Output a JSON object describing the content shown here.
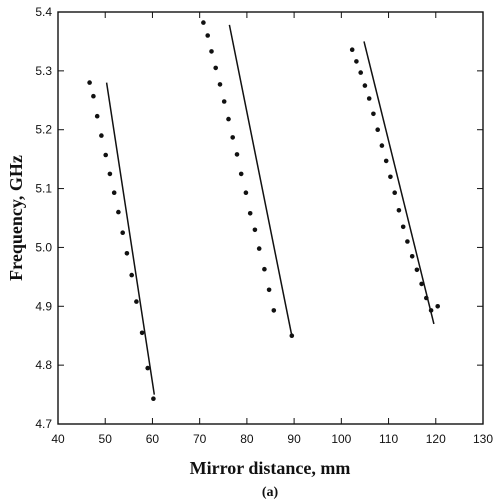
{
  "chart_data": {
    "type": "scatter",
    "title": "",
    "xlabel": "Mirror distance,  mm",
    "ylabel": "Frequency, GHz",
    "caption": "(a)",
    "xlim": [
      40,
      130
    ],
    "ylim": [
      4.7,
      5.4
    ],
    "x_ticks": [
      40,
      50,
      60,
      70,
      80,
      90,
      100,
      110,
      120,
      130
    ],
    "y_ticks": [
      4.7,
      4.8,
      4.9,
      5.0,
      5.1,
      5.2,
      5.3,
      5.4
    ],
    "x_tick_labels": [
      "40",
      "50",
      "60",
      "70",
      "80",
      "90",
      "100",
      "110",
      "120",
      "130"
    ],
    "y_tick_labels": [
      "4.7",
      "4.8",
      "4.9",
      "5.0",
      "5.1",
      "5.2",
      "5.3",
      "5.4"
    ],
    "grid": false,
    "series": [
      {
        "style": "dots",
        "points": [
          [
            46.7,
            5.28
          ],
          [
            47.5,
            5.257
          ],
          [
            48.3,
            5.223
          ],
          [
            49.2,
            5.19
          ],
          [
            50.1,
            5.157
          ],
          [
            51.0,
            5.125
          ],
          [
            51.9,
            5.093
          ],
          [
            52.8,
            5.06
          ],
          [
            53.7,
            5.025
          ],
          [
            54.6,
            4.99
          ],
          [
            55.6,
            4.953
          ],
          [
            56.6,
            4.908
          ],
          [
            57.8,
            4.855
          ],
          [
            59.0,
            4.795
          ],
          [
            60.2,
            4.743
          ]
        ]
      },
      {
        "style": "line",
        "points": [
          [
            50.3,
            5.28
          ],
          [
            60.4,
            4.75
          ]
        ]
      },
      {
        "style": "dots",
        "points": [
          [
            70.8,
            5.382
          ],
          [
            71.7,
            5.36
          ],
          [
            72.5,
            5.333
          ],
          [
            73.4,
            5.305
          ],
          [
            74.3,
            5.277
          ],
          [
            75.2,
            5.248
          ],
          [
            76.1,
            5.218
          ],
          [
            77.0,
            5.187
          ],
          [
            77.9,
            5.158
          ],
          [
            78.8,
            5.125
          ],
          [
            79.8,
            5.093
          ],
          [
            80.7,
            5.058
          ],
          [
            81.7,
            5.03
          ],
          [
            82.6,
            4.998
          ],
          [
            83.7,
            4.963
          ],
          [
            84.7,
            4.928
          ],
          [
            85.7,
            4.893
          ],
          [
            89.5,
            4.85
          ]
        ]
      },
      {
        "style": "line",
        "points": [
          [
            76.3,
            5.378
          ],
          [
            89.5,
            4.85
          ]
        ]
      },
      {
        "style": "dots",
        "points": [
          [
            102.3,
            5.336
          ],
          [
            103.2,
            5.316
          ],
          [
            104.1,
            5.297
          ],
          [
            105.0,
            5.275
          ],
          [
            105.9,
            5.253
          ],
          [
            106.8,
            5.227
          ],
          [
            107.7,
            5.2
          ],
          [
            108.6,
            5.173
          ],
          [
            109.5,
            5.147
          ],
          [
            110.4,
            5.12
          ],
          [
            111.3,
            5.093
          ],
          [
            112.2,
            5.063
          ],
          [
            113.1,
            5.035
          ],
          [
            114.0,
            5.01
          ],
          [
            115.0,
            4.985
          ],
          [
            116.0,
            4.962
          ],
          [
            117.0,
            4.938
          ],
          [
            118.0,
            4.914
          ],
          [
            119.0,
            4.893
          ],
          [
            120.4,
            4.9
          ]
        ]
      },
      {
        "style": "line",
        "points": [
          [
            104.8,
            5.35
          ],
          [
            119.6,
            4.87
          ]
        ]
      }
    ]
  }
}
